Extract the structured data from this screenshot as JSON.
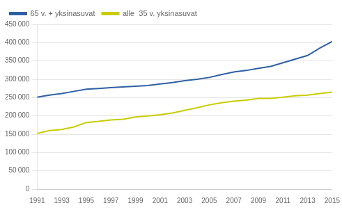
{
  "chart_data": {
    "type": "line",
    "x": [
      1991,
      1992,
      1993,
      1994,
      1995,
      1996,
      1997,
      1998,
      1999,
      2000,
      2001,
      2002,
      2003,
      2004,
      2005,
      2006,
      2007,
      2008,
      2009,
      2010,
      2011,
      2012,
      2013,
      2014,
      2015
    ],
    "series": [
      {
        "name": "65 v. + yksinasuvat",
        "color": "#2e5fa3",
        "values": [
          251000,
          257000,
          261000,
          267000,
          273000,
          275000,
          277000,
          279000,
          281000,
          283000,
          287000,
          291000,
          296000,
          300000,
          305000,
          313000,
          320000,
          324000,
          330000,
          335000,
          345000,
          355000,
          365000,
          385000,
          403000
        ]
      },
      {
        "name": "alle  35 v. yksinasuvat",
        "color": "#c8cc00",
        "values": [
          152000,
          160000,
          163000,
          170000,
          182000,
          185000,
          189000,
          191000,
          197000,
          200000,
          203000,
          208000,
          215000,
          222000,
          230000,
          236000,
          240000,
          243000,
          248000,
          248000,
          251000,
          255000,
          257000,
          261000,
          265000
        ]
      }
    ],
    "xlim": [
      1991,
      2015
    ],
    "xticks": [
      1991,
      1993,
      1995,
      1997,
      1999,
      2001,
      2003,
      2005,
      2007,
      2009,
      2011,
      2013,
      2015
    ],
    "ylim": [
      0,
      450000
    ],
    "yticks": [
      0,
      {
        "value": 50000,
        "label": "50 000"
      },
      {
        "value": 100000,
        "label": "100 000"
      },
      {
        "value": 150000,
        "label": "150 000"
      },
      {
        "value": 200000,
        "label": "200 000"
      },
      {
        "value": 250000,
        "label": "250 000"
      },
      {
        "value": 300000,
        "label": "300 000"
      },
      {
        "value": 350000,
        "label": "350 000"
      },
      {
        "value": 400000,
        "label": "400 000"
      },
      {
        "value": 450000,
        "label": "450 000"
      }
    ],
    "grid": "y",
    "legend": "upper left"
  }
}
